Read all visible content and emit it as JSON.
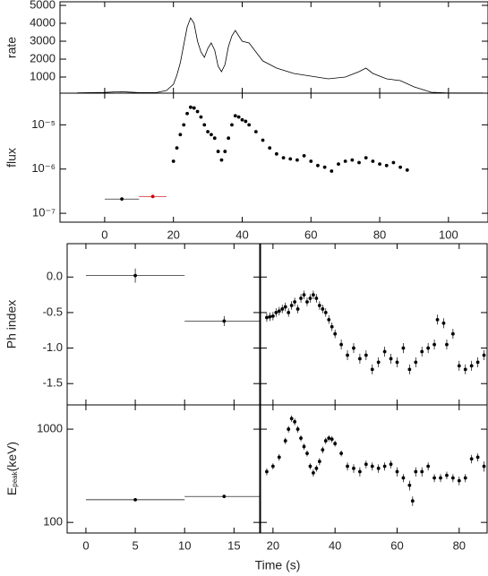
{
  "xlabel": "Time (s)",
  "chart_data": [
    {
      "type": "line",
      "ylabel": "rate",
      "xlim": [
        -13,
        111.5
      ],
      "xticks": [
        0,
        20,
        40,
        60,
        80,
        100
      ],
      "ylim": [
        100,
        5200
      ],
      "yticks": [
        1000,
        2000,
        3000,
        4000,
        5000
      ],
      "series": [
        {
          "color": "#000000",
          "x": [
            -8,
            -4,
            0,
            3,
            5,
            7,
            10,
            15,
            18,
            20,
            21,
            22,
            23,
            24,
            25,
            26,
            27,
            28,
            29,
            30,
            31,
            32,
            33,
            34,
            35,
            36,
            37,
            38,
            39,
            40,
            42,
            44,
            46,
            48,
            50,
            55,
            60,
            65,
            70,
            74,
            76,
            78,
            82,
            86,
            90,
            95,
            100,
            110
          ],
          "values": [
            120,
            130,
            140,
            170,
            180,
            160,
            130,
            130,
            250,
            600,
            1100,
            1800,
            2800,
            3800,
            4300,
            4000,
            3000,
            2400,
            2100,
            2600,
            2900,
            2500,
            1600,
            1300,
            1700,
            2700,
            3300,
            3600,
            3300,
            3000,
            2900,
            2400,
            1900,
            1700,
            1500,
            1200,
            1050,
            900,
            1000,
            1300,
            1500,
            1200,
            900,
            800,
            450,
            150,
            110,
            110
          ]
        }
      ]
    },
    {
      "type": "scatter",
      "ylabel": "flux",
      "log": true,
      "xlim": [
        -13,
        111.5
      ],
      "xticks": [
        0,
        20,
        40,
        60,
        80,
        100
      ],
      "ylim": [
        6.3e-08,
        5.2e-05
      ],
      "yticks": [
        {
          "value": 1e-07,
          "label": "10⁻⁷"
        },
        {
          "value": 1e-06,
          "label": "10⁻⁶"
        },
        {
          "value": 1e-05,
          "label": "10⁻⁵"
        }
      ],
      "series": [
        {
          "color": "#000000",
          "x": [
            20,
            21,
            22,
            23,
            24,
            25,
            26,
            27,
            28,
            29,
            30,
            31,
            32,
            33,
            34,
            35,
            36,
            37,
            38,
            39,
            40,
            41,
            42,
            44,
            46,
            48,
            50,
            52,
            54,
            56,
            58,
            60,
            62,
            64,
            66,
            68,
            70,
            72,
            74,
            76,
            78,
            80,
            82,
            84,
            86,
            88
          ],
          "values": [
            1.5e-06,
            3e-06,
            6e-06,
            1e-05,
            1.8e-05,
            2.5e-05,
            2.4e-05,
            2e-05,
            1.5e-05,
            1e-05,
            7e-06,
            6e-06,
            5e-06,
            2.5e-06,
            1.6e-06,
            2.5e-06,
            5e-06,
            1e-05,
            1.6e-05,
            1.5e-05,
            1.3e-05,
            1.2e-05,
            1e-05,
            7e-06,
            4.5e-06,
            3e-06,
            2.2e-06,
            1.8e-06,
            1.7e-06,
            1.6e-06,
            2e-06,
            1.5e-06,
            1.2e-06,
            1.1e-06,
            9e-07,
            1.3e-06,
            1.5e-06,
            1.6e-06,
            1.4e-06,
            1.8e-06,
            1.5e-06,
            1.3e-06,
            1.2e-06,
            1.4e-06,
            1.1e-06,
            9.5e-07
          ]
        },
        {
          "color": "#000000",
          "x": [
            5
          ],
          "xerr": [
            5
          ],
          "values": [
            2.1e-07
          ]
        },
        {
          "color": "#cc0000",
          "x": [
            14
          ],
          "xerr": [
            4
          ],
          "values": [
            2.4e-07
          ]
        }
      ]
    },
    {
      "type": "errorbar",
      "ylabel": "Ph index",
      "xlim": [
        -1.9,
        17.6
      ],
      "xticks": [
        0,
        5,
        10,
        15
      ],
      "ylim": [
        -1.8,
        0.47
      ],
      "yticks": [
        {
          "value": 0,
          "label": "0.0"
        },
        -0.5,
        {
          "value": -1,
          "label": "-1.0"
        },
        -1.5
      ],
      "series": [
        {
          "color": "#000000",
          "x": [
            5,
            14
          ],
          "xerr": [
            5,
            4
          ],
          "values": [
            0.02,
            -0.62
          ],
          "yerr": [
            0.1,
            0.07
          ]
        }
      ]
    },
    {
      "type": "errorbar",
      "xlim": [
        16,
        89
      ],
      "xticks": [
        20,
        40,
        60,
        80
      ],
      "ylim": [
        -1.8,
        0.47
      ],
      "yticks": [
        0,
        -0.5,
        -1,
        -1.5
      ],
      "series": [
        {
          "color": "#000000",
          "x": [
            18,
            19,
            20,
            21,
            22,
            23,
            24,
            25,
            26,
            27,
            28,
            29,
            30,
            31,
            32,
            33,
            34,
            35,
            36,
            37,
            38,
            39,
            40,
            42,
            44,
            46,
            48,
            50,
            52,
            54,
            56,
            58,
            60,
            62,
            64,
            66,
            68,
            70,
            72,
            73,
            75,
            76,
            78,
            80,
            82,
            84,
            86,
            88
          ],
          "values": [
            -0.57,
            -0.56,
            -0.55,
            -0.5,
            -0.48,
            -0.45,
            -0.42,
            -0.5,
            -0.4,
            -0.35,
            -0.45,
            -0.3,
            -0.25,
            -0.35,
            -0.3,
            -0.25,
            -0.3,
            -0.4,
            -0.45,
            -0.5,
            -0.6,
            -0.7,
            -0.8,
            -0.95,
            -1.1,
            -1.0,
            -1.15,
            -1.1,
            -1.3,
            -1.2,
            -1.05,
            -1.15,
            -1.2,
            -1.0,
            -1.3,
            -1.2,
            -1.05,
            -1.0,
            -0.95,
            -0.6,
            -0.65,
            -0.95,
            -0.8,
            -1.25,
            -1.3,
            -1.25,
            -1.2,
            -1.1
          ],
          "yerr": [
            0.06,
            0.06,
            0.06,
            0.06,
            0.06,
            0.06,
            0.06,
            0.06,
            0.06,
            0.06,
            0.06,
            0.06,
            0.06,
            0.06,
            0.06,
            0.06,
            0.06,
            0.06,
            0.06,
            0.06,
            0.06,
            0.06,
            0.06,
            0.07,
            0.07,
            0.07,
            0.07,
            0.07,
            0.07,
            0.07,
            0.07,
            0.07,
            0.07,
            0.07,
            0.07,
            0.07,
            0.07,
            0.07,
            0.07,
            0.07,
            0.07,
            0.07,
            0.07,
            0.07,
            0.07,
            0.07,
            0.07,
            0.07
          ]
        }
      ]
    },
    {
      "type": "errorbar",
      "ylabel": [
        "E",
        "peak",
        "(keV)"
      ],
      "log": true,
      "xlim": [
        -1.9,
        17.6
      ],
      "xticks": [
        0,
        5,
        10,
        15
      ],
      "ylim": [
        77,
        1820
      ],
      "yticks": [
        100,
        1000
      ],
      "series": [
        {
          "color": "#000000",
          "x": [
            5,
            14
          ],
          "xerr": [
            5,
            4
          ],
          "values": [
            175,
            190
          ],
          "yerr": [
            6,
            6
          ]
        }
      ]
    },
    {
      "type": "errorbar",
      "log": true,
      "xlim": [
        16,
        89
      ],
      "xticks": [
        20,
        40,
        60,
        80
      ],
      "ylim": [
        77,
        1820
      ],
      "yticks": [
        100,
        1000
      ],
      "series": [
        {
          "color": "#000000",
          "x": [
            18,
            20,
            22,
            24,
            25,
            26,
            27,
            28,
            29,
            30,
            31,
            32,
            33,
            34,
            35,
            36,
            37,
            38,
            39,
            40,
            42,
            44,
            46,
            48,
            50,
            52,
            54,
            56,
            58,
            60,
            62,
            64,
            65,
            66,
            68,
            70,
            72,
            74,
            76,
            78,
            80,
            82,
            84,
            86,
            88
          ],
          "values": [
            350,
            400,
            500,
            750,
            1000,
            1300,
            1200,
            1000,
            800,
            650,
            550,
            400,
            340,
            380,
            450,
            600,
            750,
            800,
            780,
            700,
            550,
            400,
            380,
            350,
            420,
            400,
            380,
            400,
            420,
            350,
            300,
            250,
            170,
            350,
            350,
            400,
            300,
            300,
            320,
            300,
            280,
            300,
            480,
            500,
            400
          ],
          "yerr": [
            30,
            30,
            40,
            60,
            80,
            100,
            100,
            80,
            60,
            50,
            40,
            30,
            30,
            30,
            40,
            50,
            60,
            60,
            60,
            50,
            40,
            40,
            40,
            40,
            40,
            40,
            40,
            40,
            40,
            40,
            30,
            30,
            20,
            40,
            40,
            40,
            30,
            30,
            30,
            30,
            30,
            30,
            50,
            50,
            50
          ]
        }
      ]
    }
  ]
}
